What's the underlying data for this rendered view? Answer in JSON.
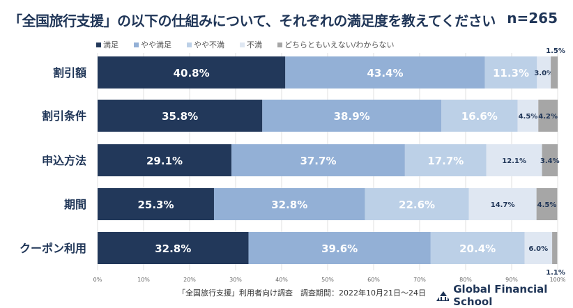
{
  "chart_data": {
    "type": "bar",
    "orientation": "horizontal",
    "stacked": true,
    "title": "「全国旅行支援」の以下の仕組みについて、それぞれの満足度を教えてください",
    "sample": "n=265",
    "categories": [
      "割引額",
      "割引条件",
      "申込方法",
      "期間",
      "クーポン利用"
    ],
    "series": [
      {
        "name": "満足",
        "color": "#22385a",
        "values": [
          40.8,
          35.8,
          29.1,
          25.3,
          32.8
        ]
      },
      {
        "name": "やや満足",
        "color": "#93b0d6",
        "values": [
          43.4,
          38.9,
          37.7,
          32.8,
          39.6
        ]
      },
      {
        "name": "やや不満",
        "color": "#bcd0e7",
        "values": [
          11.3,
          16.6,
          17.7,
          22.6,
          20.4
        ]
      },
      {
        "name": "不満",
        "color": "#dfe7f2",
        "values": [
          3.0,
          4.5,
          12.1,
          14.7,
          6.0
        ]
      },
      {
        "name": "どちらともいえない/わからない",
        "color": "#a6a6a6",
        "values": [
          1.5,
          4.2,
          3.4,
          4.5,
          1.1
        ]
      }
    ],
    "xticks": [
      "0%",
      "10%",
      "20%",
      "30%",
      "40%",
      "50%",
      "60%",
      "70%",
      "80%",
      "90%",
      "100%"
    ],
    "xlim": [
      0,
      100
    ],
    "legend": "top"
  },
  "footer": "「全国旅行支援」利用者向け調査　調査期間：2022年10月21日～24日",
  "logo": "Global Financial School"
}
